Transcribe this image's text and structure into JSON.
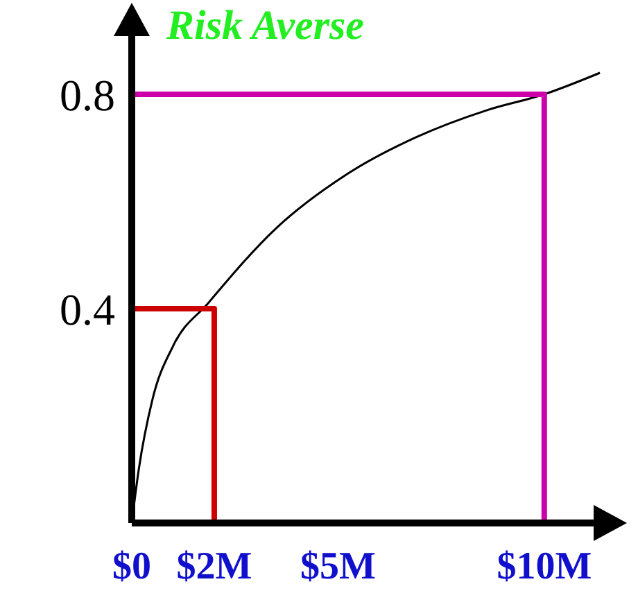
{
  "chart_data": {
    "type": "line",
    "title": "Risk Averse",
    "xlim": [
      0,
      11.6
    ],
    "ylim": [
      0,
      0.95
    ],
    "xticks": [
      {
        "value": 0,
        "label": "$0"
      },
      {
        "value": 2,
        "label": "$2M"
      },
      {
        "value": 5,
        "label": "$5M"
      },
      {
        "value": 10,
        "label": "$10M"
      }
    ],
    "yticks": [
      0.4,
      0.8
    ],
    "grid": false,
    "legend": false,
    "marker": "none",
    "line_style": "solid",
    "series": [
      {
        "color": "#000000",
        "x": [
          0,
          0.17,
          0.5,
          1.0,
          1.85,
          3.5,
          5.2,
          6.9,
          8.6,
          10,
          11.35
        ],
        "values": [
          0,
          0.1,
          0.23,
          0.33,
          0.41,
          0.55,
          0.65,
          0.72,
          0.77,
          0.8,
          0.84
        ]
      },
      {
        "color": "#cc0000",
        "x": [
          0,
          2,
          2
        ],
        "values": [
          0.4,
          0.4,
          0
        ]
      },
      {
        "color": "#cc00aa",
        "x": [
          0,
          10,
          10
        ],
        "values": [
          0.8,
          0.8,
          0
        ]
      }
    ]
  }
}
